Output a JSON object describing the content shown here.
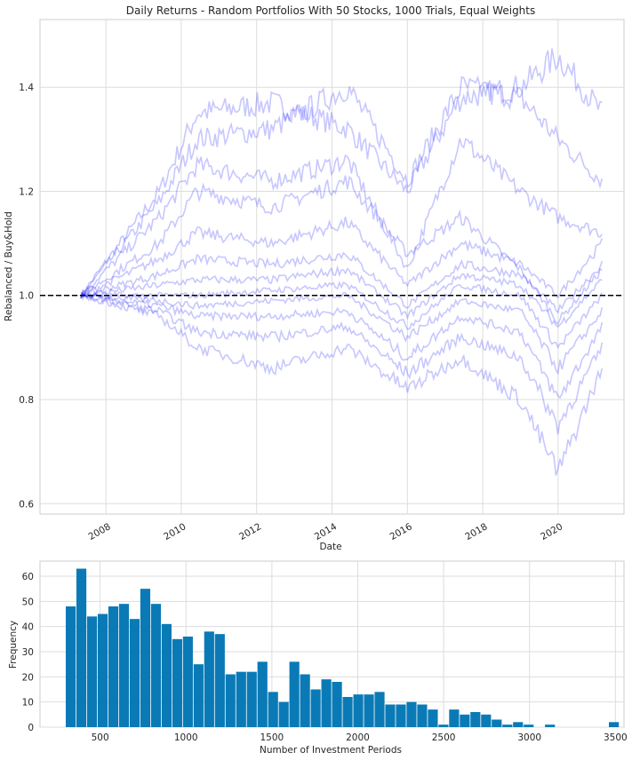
{
  "chart_data": [
    {
      "type": "line",
      "title": "Daily Returns - Random Portfolios With 50 Stocks, 1000 Trials, Equal Weights",
      "xlabel": "Date",
      "ylabel": "Rebalanced / Buy&Hold",
      "x_ticks": [
        "2008",
        "2010",
        "2012",
        "2014",
        "2016",
        "2018",
        "2020"
      ],
      "y_ticks": [
        "0.6",
        "0.8",
        "1.0",
        "1.2",
        "1.4"
      ],
      "xlim": [
        "2006-04",
        "2021-10"
      ],
      "ylim": [
        0.58,
        1.53
      ],
      "grid": true,
      "reference_line": {
        "y": 1.0,
        "style": "dashed",
        "color": "#000000"
      },
      "series_color": "#0000ff",
      "series_alpha": 0.1,
      "series": [
        {
          "x": [
            "2007-05",
            "2009-06",
            "2010-06",
            "2012-06",
            "2014-06",
            "2016-01",
            "2017-06",
            "2019-01",
            "2020-01",
            "2021-03"
          ],
          "y": [
            1.0,
            1.2,
            1.35,
            1.37,
            1.32,
            1.2,
            1.38,
            1.4,
            1.46,
            1.35
          ]
        },
        {
          "x": [
            "2007-05",
            "2009-06",
            "2010-06",
            "2012-06",
            "2014-06",
            "2016-01",
            "2017-06",
            "2019-01",
            "2020-01",
            "2021-03"
          ],
          "y": [
            1.0,
            1.18,
            1.3,
            1.32,
            1.4,
            1.22,
            1.4,
            1.38,
            1.3,
            1.22
          ]
        },
        {
          "x": [
            "2007-05",
            "2009-06",
            "2010-06",
            "2012-06",
            "2014-06",
            "2016-01",
            "2017-06",
            "2019-01",
            "2020-01",
            "2021-03"
          ],
          "y": [
            1.0,
            1.15,
            1.25,
            1.22,
            1.26,
            1.05,
            1.3,
            1.2,
            1.15,
            1.12
          ]
        },
        {
          "x": [
            "2007-05",
            "2009-06",
            "2010-06",
            "2012-06",
            "2014-06",
            "2016-01",
            "2017-06",
            "2019-01",
            "2020-01",
            "2021-03"
          ],
          "y": [
            1.0,
            1.1,
            1.2,
            1.17,
            1.22,
            1.08,
            1.15,
            1.05,
            0.95,
            1.05
          ]
        },
        {
          "x": [
            "2007-05",
            "2009-06",
            "2010-06",
            "2012-06",
            "2014-06",
            "2016-01",
            "2017-06",
            "2019-01",
            "2020-01",
            "2021-03"
          ],
          "y": [
            1.0,
            1.07,
            1.12,
            1.1,
            1.14,
            1.02,
            1.1,
            1.06,
            1.0,
            1.1
          ]
        },
        {
          "x": [
            "2007-05",
            "2009-06",
            "2010-06",
            "2012-06",
            "2014-06",
            "2016-01",
            "2017-06",
            "2019-01",
            "2020-01",
            "2021-03"
          ],
          "y": [
            1.0,
            1.04,
            1.07,
            1.06,
            1.08,
            0.98,
            1.06,
            1.04,
            0.97,
            1.06
          ]
        },
        {
          "x": [
            "2007-05",
            "2009-06",
            "2010-06",
            "2012-06",
            "2014-06",
            "2016-01",
            "2017-06",
            "2019-01",
            "2020-01",
            "2021-03"
          ],
          "y": [
            1.0,
            1.02,
            1.03,
            1.03,
            1.05,
            0.96,
            1.04,
            1.02,
            0.94,
            1.03
          ]
        },
        {
          "x": [
            "2007-05",
            "2009-06",
            "2010-06",
            "2012-06",
            "2014-06",
            "2016-01",
            "2017-06",
            "2019-01",
            "2020-01",
            "2021-03"
          ],
          "y": [
            1.0,
            1.0,
            1.0,
            1.01,
            1.02,
            0.94,
            1.02,
            1.0,
            0.9,
            1.0
          ]
        },
        {
          "x": [
            "2007-05",
            "2009-06",
            "2010-06",
            "2012-06",
            "2014-06",
            "2016-01",
            "2017-06",
            "2019-01",
            "2020-01",
            "2021-03"
          ],
          "y": [
            1.0,
            0.99,
            0.98,
            0.99,
            1.0,
            0.92,
            0.99,
            0.97,
            0.86,
            0.97
          ]
        },
        {
          "x": [
            "2007-05",
            "2009-06",
            "2010-06",
            "2012-06",
            "2014-06",
            "2016-01",
            "2017-06",
            "2019-01",
            "2020-01",
            "2021-03"
          ],
          "y": [
            1.0,
            0.98,
            0.96,
            0.96,
            0.97,
            0.88,
            0.96,
            0.93,
            0.8,
            0.94
          ]
        },
        {
          "x": [
            "2007-05",
            "2009-06",
            "2010-06",
            "2012-06",
            "2014-06",
            "2016-01",
            "2017-06",
            "2019-01",
            "2020-01",
            "2021-03"
          ],
          "y": [
            1.0,
            0.97,
            0.93,
            0.92,
            0.94,
            0.85,
            0.92,
            0.88,
            0.75,
            0.9
          ]
        },
        {
          "x": [
            "2007-05",
            "2009-06",
            "2010-06",
            "2012-06",
            "2014-06",
            "2016-01",
            "2017-06",
            "2019-01",
            "2020-01",
            "2021-03"
          ],
          "y": [
            1.0,
            0.96,
            0.9,
            0.86,
            0.9,
            0.82,
            0.88,
            0.8,
            0.66,
            0.86
          ]
        }
      ]
    },
    {
      "type": "bar",
      "title": "",
      "xlabel": "Number of Investment Periods",
      "ylabel": "Frequency",
      "x_ticks": [
        "500",
        "1000",
        "1500",
        "2000",
        "2500",
        "3000",
        "3500"
      ],
      "y_ticks": [
        "0",
        "10",
        "20",
        "30",
        "40",
        "50",
        "60"
      ],
      "xlim": [
        150,
        3550
      ],
      "ylim": [
        0,
        66
      ],
      "grid": true,
      "bar_color": "#0a7ab6",
      "bin_edges_start": 300,
      "bin_width": 62,
      "values": [
        48,
        63,
        44,
        45,
        48,
        49,
        43,
        55,
        49,
        41,
        35,
        36,
        25,
        38,
        37,
        21,
        22,
        22,
        26,
        14,
        10,
        26,
        21,
        15,
        19,
        18,
        12,
        13,
        13,
        14,
        9,
        9,
        10,
        9,
        7,
        1,
        7,
        5,
        6,
        5,
        3,
        1,
        2,
        1,
        0,
        1,
        0,
        0,
        0,
        0,
        0,
        2
      ]
    }
  ]
}
